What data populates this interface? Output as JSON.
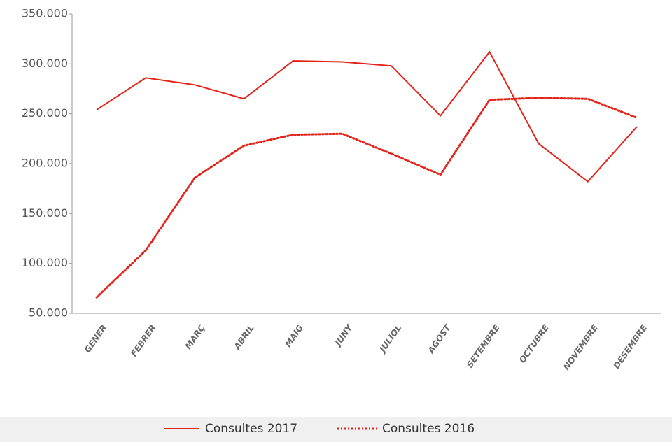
{
  "chart_data": {
    "type": "line",
    "categories": [
      "GENER",
      "FEBRER",
      "MARÇ",
      "ABRIL",
      "MAIG",
      "JUNY",
      "JULIOL",
      "AGOST",
      "SETEMBRE",
      "OCTUBRE",
      "NOVEMBRE",
      "DESEMBRE"
    ],
    "series": [
      {
        "name": "Consultes 2017",
        "color": "#e2231a",
        "dash": "solid",
        "values": [
          254000,
          286000,
          279000,
          265000,
          303000,
          302000,
          298000,
          248000,
          312000,
          220000,
          182000,
          237000
        ]
      },
      {
        "name": "Consultes 2016",
        "color": "#e2231a",
        "dash": "dotted",
        "values": [
          66000,
          113000,
          186000,
          218000,
          229000,
          230000,
          210000,
          189000,
          264000,
          266000,
          265000,
          246000
        ]
      }
    ],
    "ylim": [
      50000,
      350000
    ],
    "yticks": [
      {
        "value": 50000,
        "label": "50.000"
      },
      {
        "value": 100000,
        "label": "100.000"
      },
      {
        "value": 150000,
        "label": "150.000"
      },
      {
        "value": 200000,
        "label": "200.000"
      },
      {
        "value": 250000,
        "label": "250.000"
      },
      {
        "value": 300000,
        "label": "300.000"
      },
      {
        "value": 350000,
        "label": "350.000"
      }
    ],
    "legend": "bottom"
  }
}
